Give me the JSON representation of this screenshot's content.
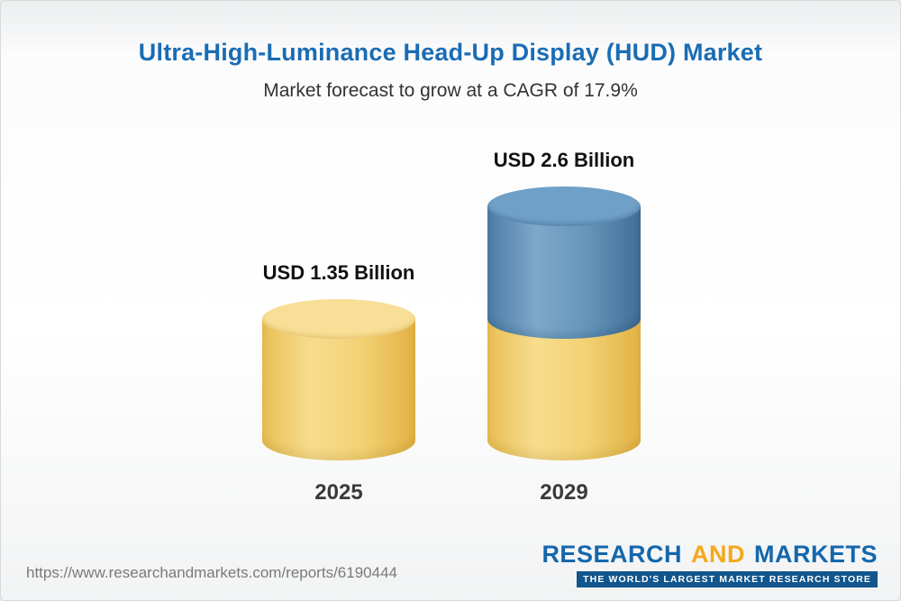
{
  "page": {
    "title": "Ultra-High-Luminance Head-Up Display (HUD) Market",
    "subtitle": "Market forecast to grow at a CAGR of 17.9%"
  },
  "chart_data": {
    "type": "bar",
    "subtype": "3d-cylinder",
    "title": "Ultra-High-Luminance Head-Up Display (HUD) Market",
    "subtitle": "Market forecast to grow at a CAGR of 17.9%",
    "cagr_percent": 17.9,
    "unit": "USD Billion",
    "categories": [
      "2025",
      "2029"
    ],
    "values": [
      1.35,
      2.6
    ],
    "value_labels": [
      "USD 1.35 Billion",
      "USD 2.6 Billion"
    ],
    "ylim": [
      0,
      2.6
    ],
    "grid": false,
    "legend": false,
    "colors": {
      "base_bar": "#F2CF6E",
      "base_bar_top": "#F8DF97",
      "growth_segment": "#5E8DB5",
      "growth_segment_top": "#6FA0C7"
    }
  },
  "footer": {
    "url": "https://www.researchandmarkets.com/reports/6190444",
    "logo": {
      "research": "RESEARCH",
      "and": "AND",
      "markets": "MARKETS",
      "tagline": "THE WORLD'S LARGEST MARKET RESEARCH STORE"
    }
  }
}
